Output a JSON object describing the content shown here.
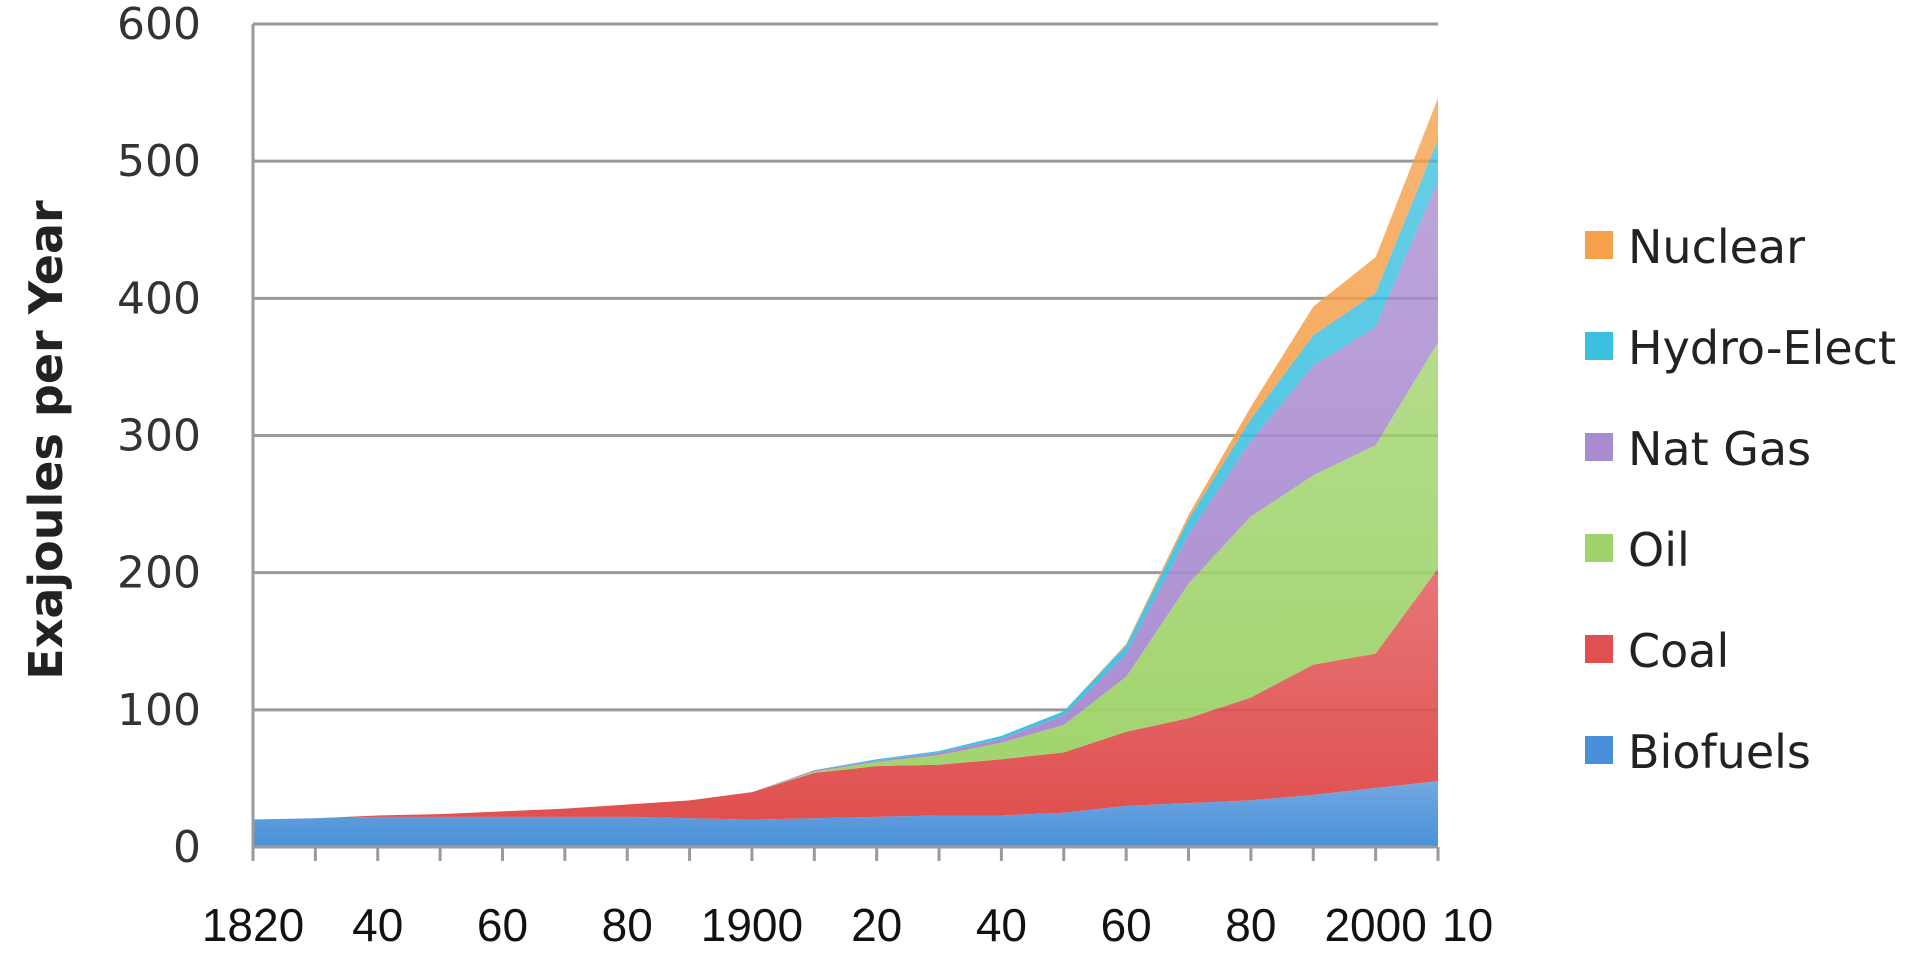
{
  "chart_data": {
    "type": "area",
    "stacked": true,
    "ylabel": "Exajoules per Year",
    "ylim": [
      0,
      600
    ],
    "yticks": [
      0,
      100,
      200,
      300,
      400,
      500,
      600
    ],
    "xlim": [
      1820,
      2010
    ],
    "x_tick_values": [
      1820,
      1840,
      1860,
      1880,
      1900,
      1920,
      1940,
      1960,
      1980,
      2000,
      2010
    ],
    "x_tick_labels": [
      "1820",
      "40",
      "60",
      "80",
      "1900",
      "20",
      "40",
      "60",
      "80",
      "2000",
      "10"
    ],
    "grid": true,
    "legend_position": "right",
    "x": [
      1820,
      1830,
      1840,
      1850,
      1860,
      1870,
      1880,
      1890,
      1900,
      1910,
      1920,
      1930,
      1940,
      1950,
      1960,
      1970,
      1980,
      1990,
      2000,
      2010
    ],
    "series": [
      {
        "name": "Biofuels",
        "color": "#4a90d9",
        "values": [
          20,
          21,
          22,
          22,
          22,
          22,
          22,
          21,
          20,
          21,
          22,
          23,
          23,
          25,
          30,
          32,
          34,
          38,
          43,
          48
        ]
      },
      {
        "name": "Coal",
        "color": "#e05050",
        "values": [
          0,
          0,
          1,
          2,
          4,
          6,
          9,
          13,
          20,
          33,
          37,
          37,
          41,
          44,
          54,
          62,
          75,
          95,
          98,
          155
        ]
      },
      {
        "name": "Oil",
        "color": "#9fd36b",
        "values": [
          0,
          0,
          0,
          0,
          0,
          0,
          0,
          0,
          0,
          1,
          3,
          7,
          12,
          20,
          40,
          98,
          132,
          138,
          152,
          165
        ]
      },
      {
        "name": "Nat Gas",
        "color": "#a98bd0",
        "values": [
          0,
          0,
          0,
          0,
          0,
          0,
          0,
          0,
          0,
          1,
          1,
          2,
          3,
          7,
          17,
          36,
          55,
          80,
          86,
          118
        ]
      },
      {
        "name": "Hydro-Elect",
        "color": "#3cc0e0",
        "values": [
          0,
          0,
          0,
          0,
          0,
          0,
          0,
          0,
          0,
          0,
          1,
          1,
          2,
          3,
          6,
          11,
          16,
          22,
          25,
          30
        ]
      },
      {
        "name": "Nuclear",
        "color": "#f5a04a",
        "values": [
          0,
          0,
          0,
          0,
          0,
          0,
          0,
          0,
          0,
          0,
          0,
          0,
          0,
          0,
          1,
          3,
          9,
          21,
          26,
          30
        ]
      }
    ],
    "legend_order": [
      "Nuclear",
      "Hydro-Elect",
      "Nat Gas",
      "Oil",
      "Coal",
      "Biofuels"
    ]
  }
}
